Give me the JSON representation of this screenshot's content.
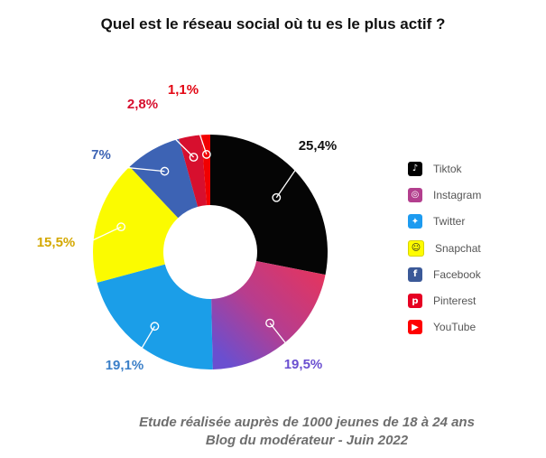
{
  "chart_data": {
    "type": "pie",
    "donut": true,
    "title": "Quel est le réseau social où tu es le plus actif ?",
    "slices": [
      {
        "name": "Tiktok",
        "value": 25.4,
        "label": "25,4%",
        "color": "#050505",
        "label_color": "#111111",
        "icon": "tiktok-icon"
      },
      {
        "name": "Instagram",
        "value": 19.5,
        "label": "19,5%",
        "color": "#c7376b",
        "label_color": "#6a4fd0",
        "icon": "instagram-icon"
      },
      {
        "name": "Twitter",
        "value": 19.1,
        "label": "19,1%",
        "color": "#1b9ee8",
        "label_color": "#3a7fc8",
        "icon": "twitter-icon"
      },
      {
        "name": "Snapchat",
        "value": 15.5,
        "label": "15,5%",
        "color": "#fbfb00",
        "label_color": "#d4a800",
        "icon": "snapchat-icon"
      },
      {
        "name": "Facebook",
        "value": 7,
        "label": "7%",
        "color": "#3d63b4",
        "label_color": "#3d63b4",
        "icon": "facebook-icon"
      },
      {
        "name": "Pinterest",
        "value": 2.8,
        "label": "2,8%",
        "color": "#d70f2e",
        "label_color": "#d70f2e",
        "icon": "pinterest-icon"
      },
      {
        "name": "YouTube",
        "value": 1.1,
        "label": "1,1%",
        "color": "#f20000",
        "label_color": "#e30613",
        "icon": "youtube-icon"
      }
    ],
    "legend_position": "right"
  },
  "caption": {
    "line1": "Etude réalisée auprès de 1000 jeunes de 18 à 24 ans",
    "line2": "Blog du modérateur - Juin 2022"
  }
}
